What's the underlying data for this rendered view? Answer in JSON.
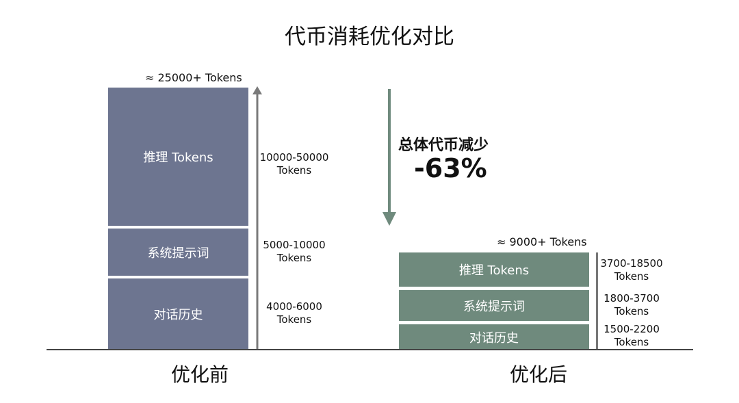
{
  "title": "代币消耗优化对比",
  "before": {
    "label": "优化前",
    "total": "≈ 25000+ Tokens",
    "color": "#6d7590",
    "segments": [
      {
        "label": "推理 Tokens",
        "range_line1": "10000-50000",
        "range_line2": "Tokens"
      },
      {
        "label": "系统提示词",
        "range_line1": "5000-10000",
        "range_line2": "Tokens"
      },
      {
        "label": "对话历史",
        "range_line1": "4000-6000",
        "range_line2": "Tokens"
      }
    ]
  },
  "after": {
    "label": "优化后",
    "total": "≈ 9000+ Tokens",
    "color": "#6f8a7d",
    "segments": [
      {
        "label": "推理 Tokens",
        "range_line1": "3700-18500",
        "range_line2": "Tokens"
      },
      {
        "label": "系统提示词",
        "range_line1": "1800-3700",
        "range_line2": "Tokens"
      },
      {
        "label": "对话历史",
        "range_line1": "1500-2200",
        "range_line2": "Tokens"
      }
    ]
  },
  "reduction": {
    "text": "总体代币减少",
    "percent": "-63%"
  }
}
